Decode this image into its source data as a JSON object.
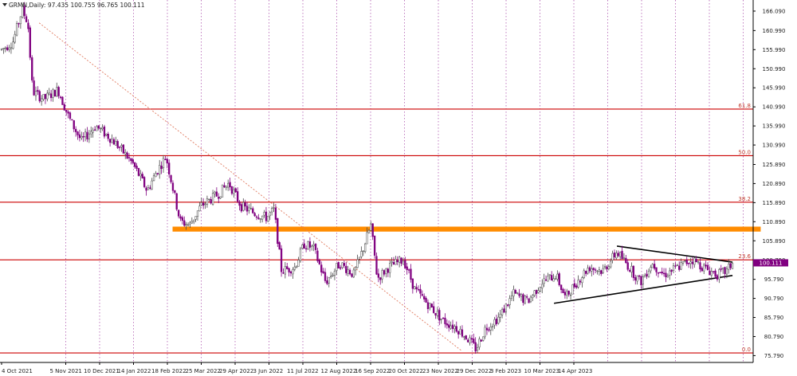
{
  "chart_data": {
    "type": "candlestick",
    "symbol_header": "GRMN,Daily: 97.435 100.755 96.765 100.111",
    "current_price": "100.111",
    "ylim": [
      74.0,
      169.0
    ],
    "y_ticks": [
      "166.090",
      "160.990",
      "155.990",
      "150.990",
      "145.990",
      "140.990",
      "135.990",
      "130.990",
      "125.890",
      "120.890",
      "115.890",
      "110.890",
      "105.890",
      "100.790",
      "95.790",
      "90.790",
      "85.790",
      "80.790",
      "75.790"
    ],
    "x_tick_labels": [
      "4 Oct 2021",
      "5 Nov 2021",
      "10 Dec 2021",
      "14 Jan 2022",
      "18 Feb 2022",
      "25 Mar 2022",
      "29 Apr 2022",
      "3 Jun 2022",
      "11 Jul 2022",
      "12 Aug 2022",
      "16 Sep 2022",
      "20 Oct 2022",
      "23 Nov 2022",
      "29 Dec 2022",
      "3 Feb 2023",
      "10 Mar 2023",
      "14 Apr 2023"
    ],
    "fibonacci_levels": [
      {
        "label": "61.8",
        "price": 140.4
      },
      {
        "label": "50.0",
        "price": 128.2
      },
      {
        "label": "38.2",
        "price": 116.0
      },
      {
        "label": "23.6",
        "price": 100.9
      },
      {
        "label": "0.0",
        "price": 76.5
      }
    ],
    "resistance_zone": {
      "price_low": 108.3,
      "price_high": 109.6,
      "color": "#ff8c00"
    },
    "price_path": [
      {
        "t": 0,
        "p": 156.0
      },
      {
        "t": 12,
        "p": 158.0
      },
      {
        "t": 22,
        "p": 166.5
      },
      {
        "t": 28,
        "p": 163.0
      },
      {
        "t": 33,
        "p": 145.0
      },
      {
        "t": 45,
        "p": 143.0
      },
      {
        "t": 60,
        "p": 145.5
      },
      {
        "t": 72,
        "p": 138.0
      },
      {
        "t": 85,
        "p": 132.0
      },
      {
        "t": 100,
        "p": 136.0
      },
      {
        "t": 115,
        "p": 133.0
      },
      {
        "t": 125,
        "p": 130.5
      },
      {
        "t": 140,
        "p": 126.0
      },
      {
        "t": 155,
        "p": 119.0
      },
      {
        "t": 165,
        "p": 124.0
      },
      {
        "t": 175,
        "p": 128.0
      },
      {
        "t": 190,
        "p": 111.0
      },
      {
        "t": 200,
        "p": 110.0
      },
      {
        "t": 212,
        "p": 115.0
      },
      {
        "t": 230,
        "p": 118.0
      },
      {
        "t": 242,
        "p": 121.0
      },
      {
        "t": 255,
        "p": 115.0
      },
      {
        "t": 270,
        "p": 113.0
      },
      {
        "t": 282,
        "p": 112.0
      },
      {
        "t": 290,
        "p": 114.0
      },
      {
        "t": 298,
        "p": 98.0
      },
      {
        "t": 312,
        "p": 99.0
      },
      {
        "t": 322,
        "p": 105.0
      },
      {
        "t": 332,
        "p": 104.0
      },
      {
        "t": 345,
        "p": 95.0
      },
      {
        "t": 360,
        "p": 100.0
      },
      {
        "t": 375,
        "p": 97.0
      },
      {
        "t": 385,
        "p": 104.0
      },
      {
        "t": 393,
        "p": 110.0
      },
      {
        "t": 400,
        "p": 96.0
      },
      {
        "t": 412,
        "p": 99.0
      },
      {
        "t": 428,
        "p": 101.0
      },
      {
        "t": 440,
        "p": 93.0
      },
      {
        "t": 455,
        "p": 89.0
      },
      {
        "t": 470,
        "p": 85.0
      },
      {
        "t": 485,
        "p": 83.0
      },
      {
        "t": 497,
        "p": 80.0
      },
      {
        "t": 505,
        "p": 77.5
      },
      {
        "t": 515,
        "p": 83.0
      },
      {
        "t": 530,
        "p": 86.0
      },
      {
        "t": 545,
        "p": 92.0
      },
      {
        "t": 560,
        "p": 90.0
      },
      {
        "t": 575,
        "p": 95.0
      },
      {
        "t": 590,
        "p": 97.0
      },
      {
        "t": 600,
        "p": 91.0
      },
      {
        "t": 612,
        "p": 95.0
      },
      {
        "t": 625,
        "p": 99.0
      },
      {
        "t": 640,
        "p": 98.0
      },
      {
        "t": 655,
        "p": 103.0
      },
      {
        "t": 668,
        "p": 99.0
      },
      {
        "t": 680,
        "p": 95.0
      },
      {
        "t": 692,
        "p": 100.0
      },
      {
        "t": 705,
        "p": 97.0
      },
      {
        "t": 720,
        "p": 99.0
      },
      {
        "t": 735,
        "p": 101.0
      },
      {
        "t": 750,
        "p": 98.5
      },
      {
        "t": 762,
        "p": 97.0
      },
      {
        "t": 772,
        "p": 98.0
      },
      {
        "t": 778,
        "p": 100.1
      }
    ],
    "trendlines": [
      {
        "name": "falling-diagonal",
        "style": "dotted",
        "color": "#e07a5f",
        "from": {
          "t": 40,
          "p": 163.0
        },
        "to": {
          "t": 490,
          "p": 77.0
        }
      },
      {
        "name": "triangle-upper",
        "style": "solid",
        "color": "#000000",
        "from": {
          "t": 655,
          "p": 104.5
        },
        "to": {
          "t": 778,
          "p": 100.3
        }
      },
      {
        "name": "triangle-lower",
        "style": "solid",
        "color": "#000000",
        "from": {
          "t": 588,
          "p": 89.5
        },
        "to": {
          "t": 778,
          "p": 96.8
        }
      }
    ],
    "candle_count": 385,
    "grid": true,
    "legend": "none",
    "colors": {
      "up": "#4a4a4a",
      "down": "#800080",
      "fib_line": "#cc0000",
      "grid": "#b05ab0",
      "price_tag_bg": "#800080"
    }
  }
}
